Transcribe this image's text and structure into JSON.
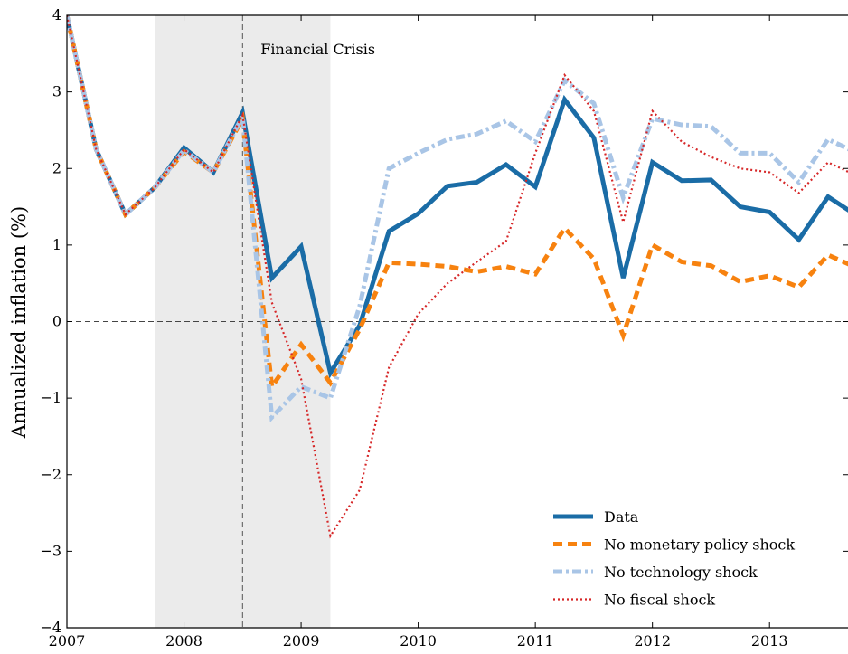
{
  "chart_data": {
    "type": "line",
    "y_label": "Annualized inflation (%)",
    "annotation": "Financial Crisis",
    "shaded_region": [
      2007.75,
      2009.25
    ],
    "vline": 2008.5,
    "hline": 0,
    "x": [
      2007,
      2007.25,
      2007.5,
      2007.75,
      2008,
      2008.25,
      2008.5,
      2008.75,
      2009,
      2009.25,
      2009.5,
      2009.75,
      2010,
      2010.25,
      2010.5,
      2010.75,
      2011,
      2011.25,
      2011.5,
      2011.75,
      2012,
      2012.25,
      2012.5,
      2012.75,
      2013,
      2013.25,
      2013.5,
      2013.75
    ],
    "series": [
      {
        "name": "Data",
        "color": "#1a6ca6",
        "values": [
          4.0,
          2.25,
          1.4,
          1.75,
          2.27,
          1.95,
          2.73,
          0.57,
          0.98,
          -0.67,
          -0.05,
          1.18,
          1.41,
          1.77,
          1.82,
          2.05,
          1.76,
          2.9,
          2.4,
          0.57,
          2.08,
          1.84,
          1.85,
          1.5,
          1.43,
          1.07,
          1.63,
          1.38
        ]
      },
      {
        "name": "No monetary policy shock",
        "color": "#f7820f",
        "values": [
          4.0,
          2.25,
          1.4,
          1.75,
          2.22,
          1.95,
          2.65,
          -0.85,
          -0.3,
          -0.8,
          -0.1,
          0.77,
          0.75,
          0.72,
          0.65,
          0.72,
          0.62,
          1.22,
          0.82,
          -0.18,
          1.0,
          0.78,
          0.73,
          0.52,
          0.6,
          0.45,
          0.87,
          0.7
        ]
      },
      {
        "name": "No technology shock",
        "color": "#a9c5e6",
        "values": [
          4.0,
          2.25,
          1.4,
          1.75,
          2.24,
          1.95,
          2.68,
          -1.25,
          -0.85,
          -1.0,
          0.2,
          2.0,
          2.2,
          2.38,
          2.45,
          2.62,
          2.35,
          3.15,
          2.85,
          1.62,
          2.65,
          2.57,
          2.55,
          2.2,
          2.2,
          1.82,
          2.38,
          2.2
        ]
      },
      {
        "name": "No fiscal shock",
        "color": "#d62728",
        "values": [
          4.0,
          2.25,
          1.4,
          1.75,
          2.25,
          1.95,
          2.7,
          0.25,
          -0.75,
          -2.8,
          -2.2,
          -0.6,
          0.1,
          0.5,
          0.78,
          1.05,
          2.2,
          3.22,
          2.75,
          1.3,
          2.75,
          2.35,
          2.15,
          2.0,
          1.95,
          1.68,
          2.08,
          1.9
        ]
      }
    ],
    "xlim": [
      2007,
      2013.67
    ],
    "ylim": [
      -4,
      4
    ],
    "xticks": [
      2007,
      2008,
      2009,
      2010,
      2011,
      2012,
      2013
    ],
    "yticks": [
      {
        "value": -4,
        "label": "−4"
      },
      {
        "value": -3,
        "label": "−3"
      },
      {
        "value": -2,
        "label": "−2"
      },
      {
        "value": -1,
        "label": "−1"
      },
      0,
      1,
      2,
      3,
      4
    ],
    "legend_position": "lower right"
  }
}
